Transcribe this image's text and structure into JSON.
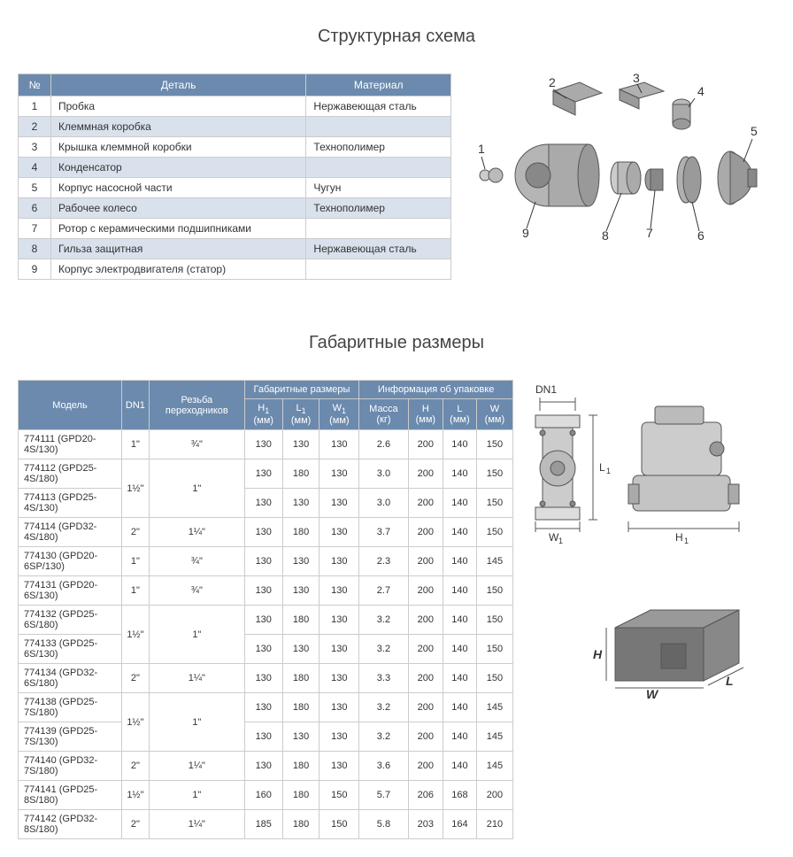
{
  "title1": "Структурная схема",
  "title2": "Габаритные размеры",
  "parts_headers": [
    "№",
    "Деталь",
    "Материал"
  ],
  "parts": [
    {
      "n": "1",
      "name": "Пробка",
      "mat": "Нержавеющая сталь"
    },
    {
      "n": "2",
      "name": "Клеммная коробка",
      "mat": ""
    },
    {
      "n": "3",
      "name": "Крышка клеммной коробки",
      "mat": "Технополимер"
    },
    {
      "n": "4",
      "name": "Конденсатор",
      "mat": ""
    },
    {
      "n": "5",
      "name": "Корпус насосной части",
      "mat": "Чугун"
    },
    {
      "n": "6",
      "name": "Рабочее колесо",
      "mat": "Технополимер"
    },
    {
      "n": "7",
      "name": "Ротор с керамическими подшипниками",
      "mat": ""
    },
    {
      "n": "8",
      "name": "Гильза защитная",
      "mat": "Нержавеющая сталь"
    },
    {
      "n": "9",
      "name": "Корпус электродвигателя (статор)",
      "mat": ""
    }
  ],
  "dims_headers": {
    "model": "Модель",
    "dn1": "DN1",
    "thread": "Резьба переходников",
    "overall": "Габаритные размеры",
    "pack": "Информация об упаковке",
    "h1": "H",
    "l1": "L",
    "w1": "W",
    "mass": "Масса (кг)",
    "h": "H (мм)",
    "l": "L (мм)",
    "w": "W (мм)"
  },
  "dims": [
    {
      "m": "774111 (GPD20-4S/130)",
      "dn": "1\"",
      "th": "¾\"",
      "h1": "130",
      "l1": "130",
      "w1": "130",
      "mass": "2.6",
      "h": "200",
      "l": "140",
      "w": "150",
      "rs_dn": 1,
      "rs_th": 1
    },
    {
      "m": "774112 (GPD25-4S/180)",
      "dn": "1½\"",
      "th": "1\"",
      "h1": "130",
      "l1": "180",
      "w1": "130",
      "mass": "3.0",
      "h": "200",
      "l": "140",
      "w": "150",
      "rs_dn": 2,
      "rs_th": 2
    },
    {
      "m": "774113 (GPD25-4S/130)",
      "dn": "",
      "th": "",
      "h1": "130",
      "l1": "130",
      "w1": "130",
      "mass": "3.0",
      "h": "200",
      "l": "140",
      "w": "150",
      "rs_dn": 0,
      "rs_th": 0
    },
    {
      "m": "774114 (GPD32-4S/180)",
      "dn": "2\"",
      "th": "1¼\"",
      "h1": "130",
      "l1": "180",
      "w1": "130",
      "mass": "3.7",
      "h": "200",
      "l": "140",
      "w": "150",
      "rs_dn": 1,
      "rs_th": 1
    },
    {
      "m": "774130 (GPD20-6SP/130)",
      "dn": "1\"",
      "th": "¾\"",
      "h1": "130",
      "l1": "130",
      "w1": "130",
      "mass": "2.3",
      "h": "200",
      "l": "140",
      "w": "145",
      "rs_dn": 1,
      "rs_th": 1
    },
    {
      "m": "774131 (GPD20-6S/130)",
      "dn": "1\"",
      "th": "¾\"",
      "h1": "130",
      "l1": "130",
      "w1": "130",
      "mass": "2.7",
      "h": "200",
      "l": "140",
      "w": "150",
      "rs_dn": 1,
      "rs_th": 1
    },
    {
      "m": "774132 (GPD25-6S/180)",
      "dn": "1½\"",
      "th": "1\"",
      "h1": "130",
      "l1": "180",
      "w1": "130",
      "mass": "3.2",
      "h": "200",
      "l": "140",
      "w": "150",
      "rs_dn": 2,
      "rs_th": 2
    },
    {
      "m": "774133 (GPD25-6S/130)",
      "dn": "",
      "th": "",
      "h1": "130",
      "l1": "130",
      "w1": "130",
      "mass": "3.2",
      "h": "200",
      "l": "140",
      "w": "150",
      "rs_dn": 0,
      "rs_th": 0
    },
    {
      "m": "774134 (GPD32-6S/180)",
      "dn": "2\"",
      "th": "1¼\"",
      "h1": "130",
      "l1": "180",
      "w1": "130",
      "mass": "3.3",
      "h": "200",
      "l": "140",
      "w": "150",
      "rs_dn": 1,
      "rs_th": 1
    },
    {
      "m": "774138 (GPD25-7S/180)",
      "dn": "1½\"",
      "th": "1\"",
      "h1": "130",
      "l1": "180",
      "w1": "130",
      "mass": "3.2",
      "h": "200",
      "l": "140",
      "w": "145",
      "rs_dn": 2,
      "rs_th": 2
    },
    {
      "m": "774139 (GPD25-7S/130)",
      "dn": "",
      "th": "",
      "h1": "130",
      "l1": "130",
      "w1": "130",
      "mass": "3.2",
      "h": "200",
      "l": "140",
      "w": "145",
      "rs_dn": 0,
      "rs_th": 0
    },
    {
      "m": "774140 (GPD32-7S/180)",
      "dn": "2\"",
      "th": "1¼\"",
      "h1": "130",
      "l1": "180",
      "w1": "130",
      "mass": "3.6",
      "h": "200",
      "l": "140",
      "w": "145",
      "rs_dn": 1,
      "rs_th": 1
    },
    {
      "m": "774141 (GPD25-8S/180)",
      "dn": "1½\"",
      "th": "1\"",
      "h1": "160",
      "l1": "180",
      "w1": "150",
      "mass": "5.7",
      "h": "206",
      "l": "168",
      "w": "200",
      "rs_dn": 1,
      "rs_th": 1
    },
    {
      "m": "774142 (GPD32-8S/180)",
      "dn": "2\"",
      "th": "1¼\"",
      "h1": "185",
      "l1": "180",
      "w1": "150",
      "mass": "5.8",
      "h": "203",
      "l": "164",
      "w": "210",
      "rs_dn": 1,
      "rs_th": 1
    }
  ],
  "labels": {
    "dn1": "DN1",
    "w1": "W",
    "l1": "L",
    "h1": "H",
    "h": "H",
    "w": "W",
    "l": "L"
  },
  "colors": {
    "header": "#6b8aad",
    "stripe": "#d9e1ec",
    "border": "#ccc",
    "text": "#333"
  }
}
